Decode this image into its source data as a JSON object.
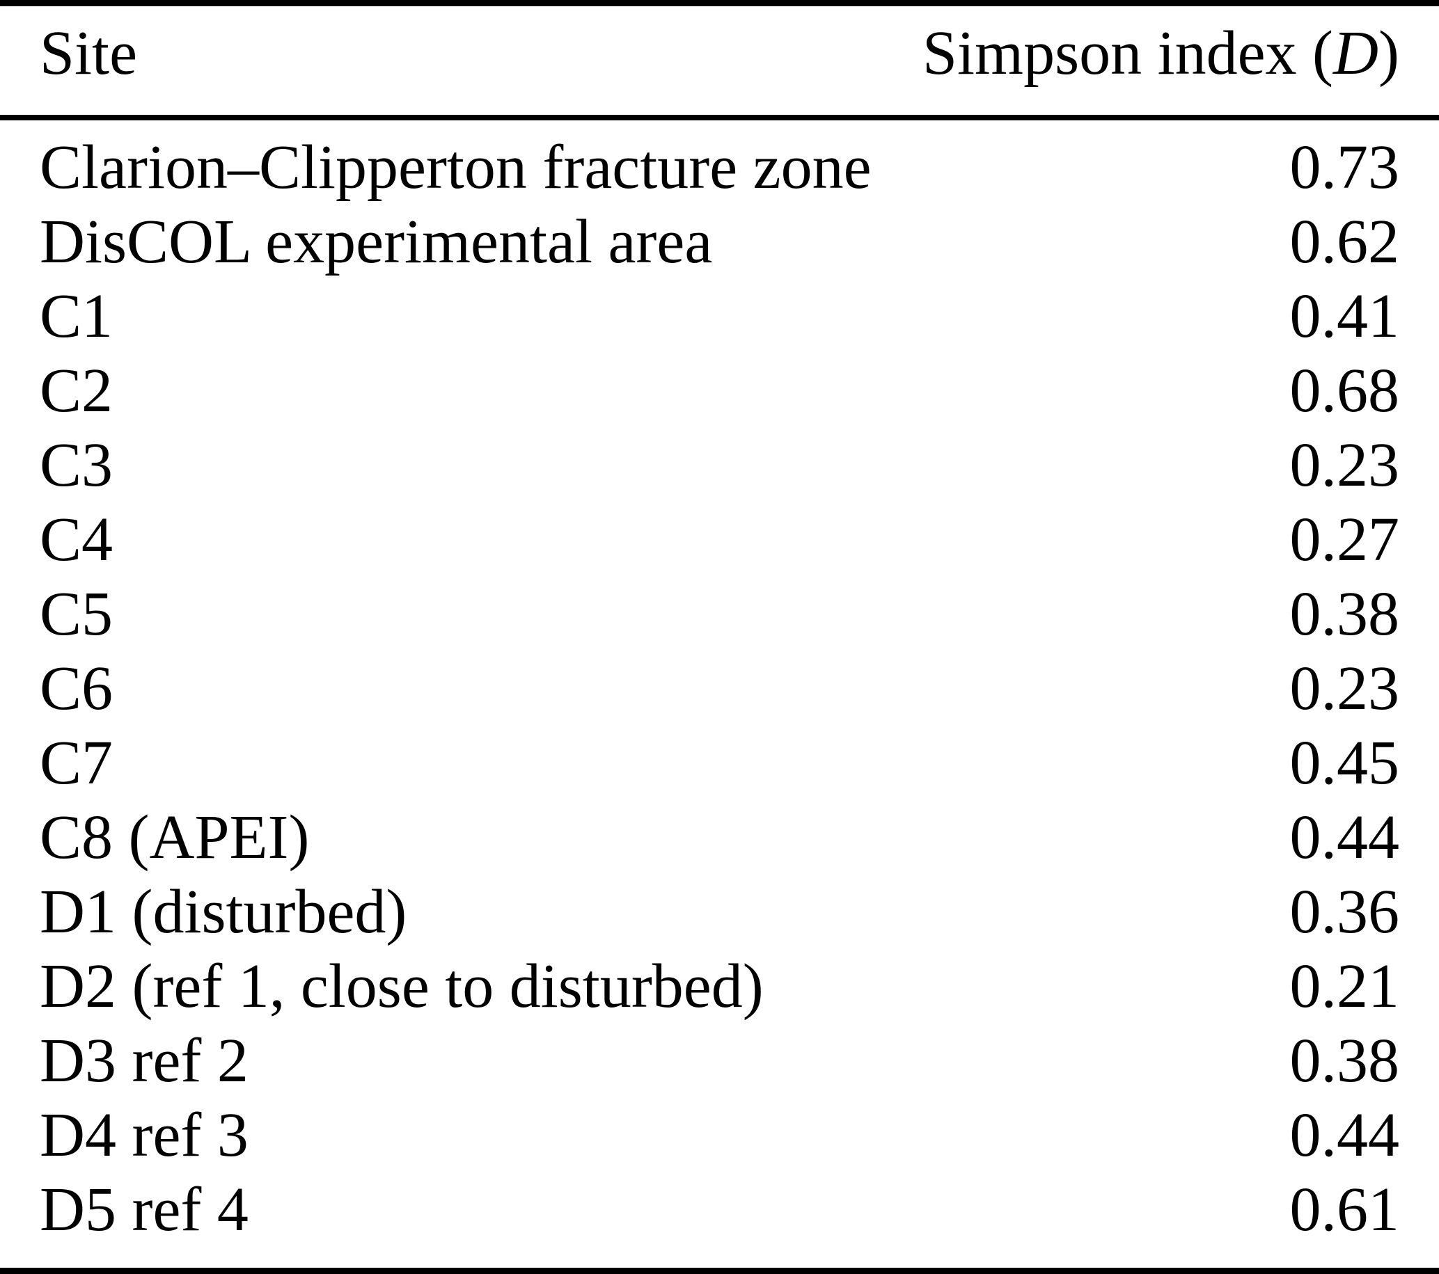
{
  "table": {
    "columns": {
      "site": "Site",
      "value_prefix": "Simpson index (",
      "value_symbol": "D",
      "value_suffix": ")"
    },
    "rows": [
      {
        "site": "Clarion–Clipperton fracture zone",
        "value": "0.73"
      },
      {
        "site": "DisCOL experimental area",
        "value": "0.62"
      },
      {
        "site": "C1",
        "value": "0.41"
      },
      {
        "site": "C2",
        "value": "0.68"
      },
      {
        "site": "C3",
        "value": "0.23"
      },
      {
        "site": "C4",
        "value": "0.27"
      },
      {
        "site": "C5",
        "value": "0.38"
      },
      {
        "site": "C6",
        "value": "0.23"
      },
      {
        "site": "C7",
        "value": "0.45"
      },
      {
        "site": "C8 (APEI)",
        "value": "0.44"
      },
      {
        "site": "D1 (disturbed)",
        "value": "0.36"
      },
      {
        "site": "D2 (ref 1, close to disturbed)",
        "value": "0.21"
      },
      {
        "site": "D3 ref 2",
        "value": "0.38"
      },
      {
        "site": "D4 ref 3",
        "value": "0.44"
      },
      {
        "site": "D5 ref 4",
        "value": "0.61"
      }
    ]
  },
  "chart_data": {
    "type": "table",
    "columns": [
      "Site",
      "Simpson index (D)"
    ],
    "rows": [
      [
        "Clarion–Clipperton fracture zone",
        0.73
      ],
      [
        "DisCOL experimental area",
        0.62
      ],
      [
        "C1",
        0.41
      ],
      [
        "C2",
        0.68
      ],
      [
        "C3",
        0.23
      ],
      [
        "C4",
        0.27
      ],
      [
        "C5",
        0.38
      ],
      [
        "C6",
        0.23
      ],
      [
        "C7",
        0.45
      ],
      [
        "C8 (APEI)",
        0.44
      ],
      [
        "D1 (disturbed)",
        0.36
      ],
      [
        "D2 (ref 1, close to disturbed)",
        0.21
      ],
      [
        "D3 ref 2",
        0.38
      ],
      [
        "D4 ref 3",
        0.44
      ],
      [
        "D5 ref 4",
        0.61
      ]
    ]
  },
  "colors": {
    "background": "#ffffff",
    "text": "#000000",
    "rule": "#000000"
  }
}
